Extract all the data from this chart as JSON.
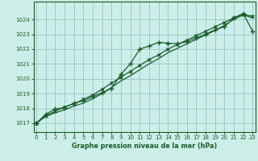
{
  "title": "Graphe pression niveau de la mer (hPa)",
  "bg_color": "#cceee8",
  "grid_color": "#99cccc",
  "line_color": "#1a5c2a",
  "x_ticks": [
    0,
    1,
    2,
    3,
    4,
    5,
    6,
    7,
    8,
    9,
    10,
    11,
    12,
    13,
    14,
    15,
    16,
    17,
    18,
    19,
    20,
    21,
    22,
    23
  ],
  "y_ticks": [
    1017,
    1018,
    1019,
    1020,
    1021,
    1022,
    1023,
    1024
  ],
  "xlim": [
    -0.3,
    23.3
  ],
  "ylim": [
    1016.4,
    1025.2
  ],
  "line_smooth_x": [
    0,
    1,
    2,
    3,
    4,
    5,
    6,
    7,
    8,
    9,
    10,
    11,
    12,
    13,
    14,
    15,
    16,
    17,
    18,
    19,
    20,
    21,
    22,
    23
  ],
  "line_smooth_y": [
    1017.0,
    1017.5,
    1017.8,
    1018.1,
    1018.3,
    1018.6,
    1018.9,
    1019.3,
    1019.7,
    1020.1,
    1020.5,
    1020.9,
    1021.3,
    1021.6,
    1022.0,
    1022.3,
    1022.6,
    1022.9,
    1023.2,
    1023.5,
    1023.8,
    1024.1,
    1024.35,
    1024.2
  ],
  "line_marker_x": [
    0,
    1,
    2,
    3,
    4,
    5,
    6,
    7,
    8,
    9,
    10,
    11,
    12,
    13,
    14,
    15,
    16,
    17,
    18,
    19,
    20,
    21,
    22,
    23
  ],
  "line_marker_y": [
    1017.0,
    1017.6,
    1017.95,
    1018.05,
    1018.35,
    1018.5,
    1018.8,
    1019.05,
    1019.35,
    1020.3,
    1021.0,
    1022.0,
    1022.2,
    1022.45,
    1022.4,
    1022.35,
    1022.5,
    1022.75,
    1023.0,
    1023.3,
    1023.5,
    1024.1,
    1024.4,
    1023.2
  ],
  "line_lower_x": [
    0,
    1,
    2,
    3,
    4,
    5,
    6,
    7,
    8,
    9,
    10,
    11,
    12,
    13,
    14,
    15,
    16,
    17,
    18,
    19,
    20,
    21,
    22,
    23
  ],
  "line_lower_y": [
    1017.0,
    1017.45,
    1017.7,
    1017.9,
    1018.15,
    1018.35,
    1018.65,
    1019.0,
    1019.4,
    1019.85,
    1020.2,
    1020.6,
    1021.0,
    1021.35,
    1021.75,
    1022.05,
    1022.35,
    1022.65,
    1022.95,
    1023.25,
    1023.6,
    1024.0,
    1024.3,
    1024.1
  ]
}
